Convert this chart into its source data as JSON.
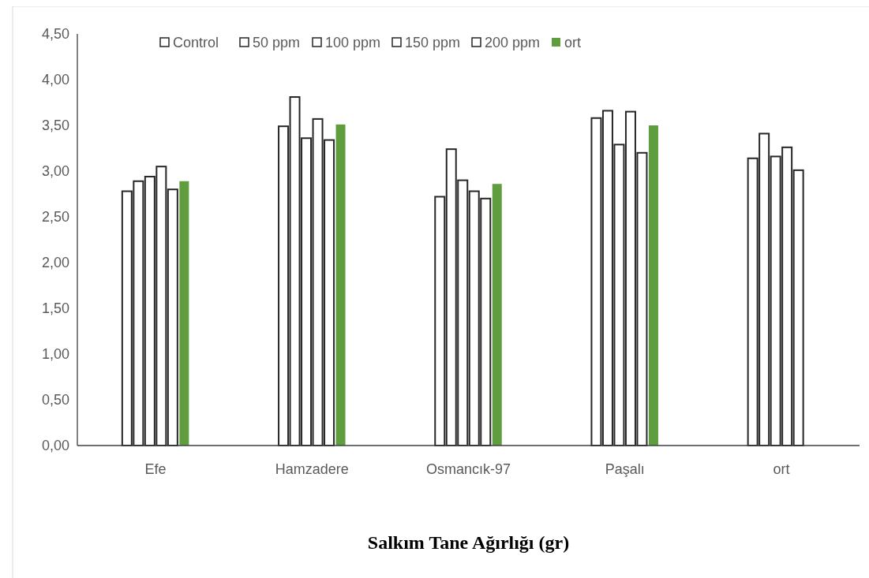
{
  "chart_data": {
    "type": "bar",
    "title": "Salkım Tane Ağırlığı (gr)",
    "categories": [
      "Efe",
      "Hamzadere",
      "Osmancık-97",
      "Paşalı",
      "ort"
    ],
    "series": [
      {
        "name": "Control",
        "color": "#ffffff",
        "values": [
          2.78,
          3.49,
          2.72,
          3.58,
          3.14
        ]
      },
      {
        "name": "50 ppm",
        "color": "#ffffff",
        "values": [
          2.89,
          3.81,
          3.24,
          3.66,
          3.41
        ]
      },
      {
        "name": "100 ppm",
        "color": "#ffffff",
        "values": [
          2.94,
          3.36,
          2.9,
          3.29,
          3.16
        ]
      },
      {
        "name": "150 ppm",
        "color": "#ffffff",
        "values": [
          3.05,
          3.57,
          2.78,
          3.65,
          3.26
        ]
      },
      {
        "name": "200 ppm",
        "color": "#ffffff",
        "values": [
          2.8,
          3.34,
          2.7,
          3.2,
          3.01
        ]
      },
      {
        "name": "ort",
        "color": "#5f9d3f",
        "values": [
          2.89,
          3.51,
          2.86,
          3.5,
          null
        ]
      }
    ],
    "ylim": [
      0,
      4.5
    ],
    "yticks": [
      {
        "value": 0,
        "label": "0,00"
      },
      {
        "value": 0.5,
        "label": "0,50"
      },
      {
        "value": 1,
        "label": "1,00"
      },
      {
        "value": 1.5,
        "label": "1,50"
      },
      {
        "value": 2,
        "label": "2,00"
      },
      {
        "value": 2.5,
        "label": "2,50"
      },
      {
        "value": 3,
        "label": "3,00"
      },
      {
        "value": 3.5,
        "label": "3,50"
      },
      {
        "value": 4,
        "label": "4,00"
      },
      {
        "value": 4.5,
        "label": "4,50"
      }
    ],
    "grid": false,
    "legend": "top"
  }
}
